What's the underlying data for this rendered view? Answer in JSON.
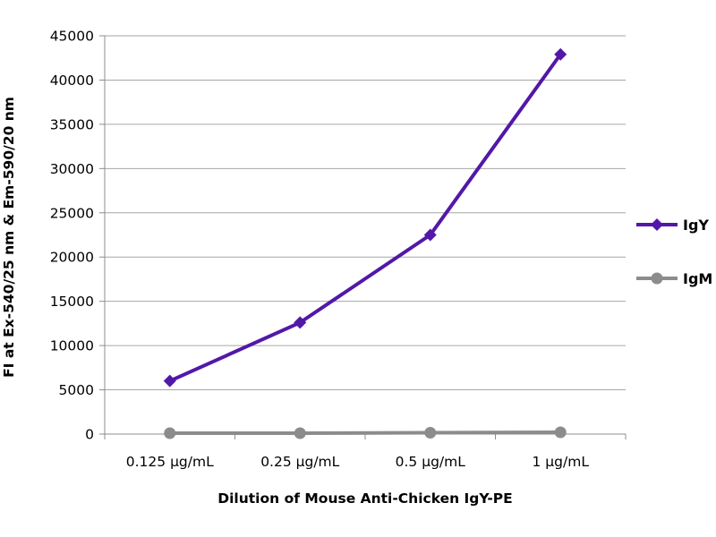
{
  "chart_data": {
    "type": "line",
    "title": "",
    "xlabel": "Dilution of Mouse Anti-Chicken IgY-PE",
    "ylabel": "FI at Ex-540/25 nm & Em-590/20 nm",
    "categories": [
      "0.125 µg/mL",
      "0.25 µg/mL",
      "0.5 µg/mL",
      "1 µg/mL"
    ],
    "ylim": [
      0,
      45000
    ],
    "yticks": [
      0,
      5000,
      10000,
      15000,
      20000,
      25000,
      30000,
      35000,
      40000,
      45000
    ],
    "grid": true,
    "legend_position": "right",
    "series": [
      {
        "name": "IgY",
        "values": [
          6000,
          12600,
          22500,
          42900
        ],
        "color": "#5218A8",
        "marker": "diamond"
      },
      {
        "name": "IgM",
        "values": [
          100,
          100,
          150,
          200
        ],
        "color": "#8C8C8C",
        "marker": "circle"
      }
    ]
  }
}
